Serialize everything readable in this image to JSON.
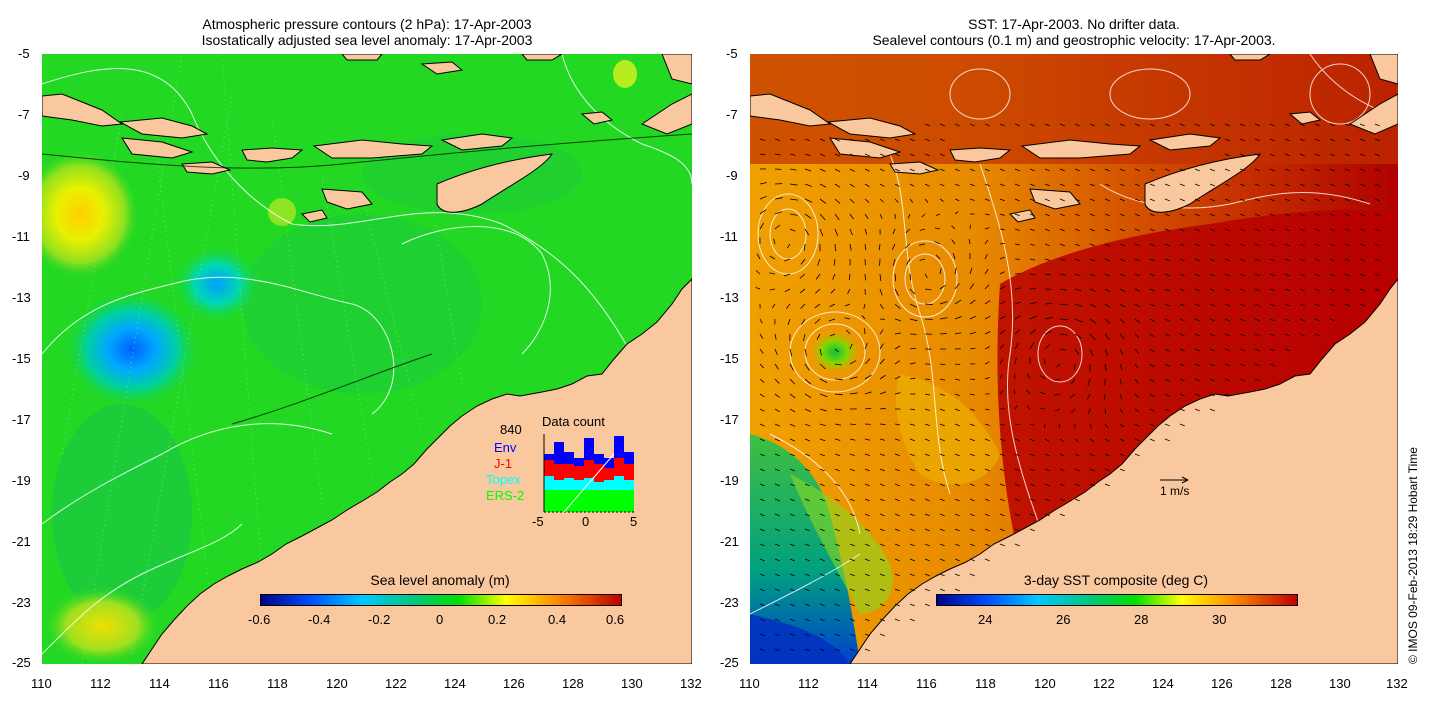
{
  "left_panel": {
    "title_line1": "Atmospheric pressure contours (2 hPa): 17-Apr-2003",
    "title_line2": "Isostatically adjusted sea level anomaly: 17-Apr-2003",
    "colorbar_label": "Sea level anomaly (m)",
    "colorbar_ticks": [
      "-0.6",
      "-0.4",
      "-0.2",
      "0",
      "0.2",
      "0.4",
      "0.6"
    ],
    "colorbar_colors": [
      "#00008b",
      "#0050ff",
      "#00c8ff",
      "#00c878",
      "#00e000",
      "#ffff00",
      "#ff8c00",
      "#c00000"
    ]
  },
  "right_panel": {
    "title_line1": "SST: 17-Apr-2003. No drifter data.",
    "title_line2": "Sealevel contours (0.1 m) and geostrophic velocity: 17-Apr-2003.",
    "colorbar_label": "3-day SST composite (deg C)",
    "colorbar_ticks": [
      "24",
      "26",
      "28",
      "30"
    ],
    "colorbar_colors": [
      "#00008b",
      "#0050ff",
      "#00c8ff",
      "#00c878",
      "#00e000",
      "#ffff00",
      "#ff8c00",
      "#c00000"
    ],
    "scale_label": "1 m/s"
  },
  "axes": {
    "x_ticks": [
      "110",
      "112",
      "114",
      "116",
      "118",
      "120",
      "122",
      "124",
      "126",
      "128",
      "130",
      "132"
    ],
    "y_ticks": [
      "-5",
      "-7",
      "-9",
      "-11",
      "-13",
      "-15",
      "-17",
      "-19",
      "-21",
      "-23",
      "-25"
    ]
  },
  "data_count": {
    "title": "Data count",
    "total": "840",
    "legend": [
      {
        "label": "Env",
        "color": "#0000ff"
      },
      {
        "label": "J-1",
        "color": "#ff0000"
      },
      {
        "label": "Topex",
        "color": "#00ffff"
      },
      {
        "label": "ERS-2",
        "color": "#00ff00"
      }
    ],
    "x_ticks": [
      "-5",
      "0",
      "5"
    ]
  },
  "colors": {
    "land": "#f9c89e",
    "sea_level_base": "#22d822",
    "sst_base": "#d95a00",
    "contour": "#ffffff"
  },
  "credit": "© IMOS 09-Feb-2013 18:29 Hobart Time"
}
